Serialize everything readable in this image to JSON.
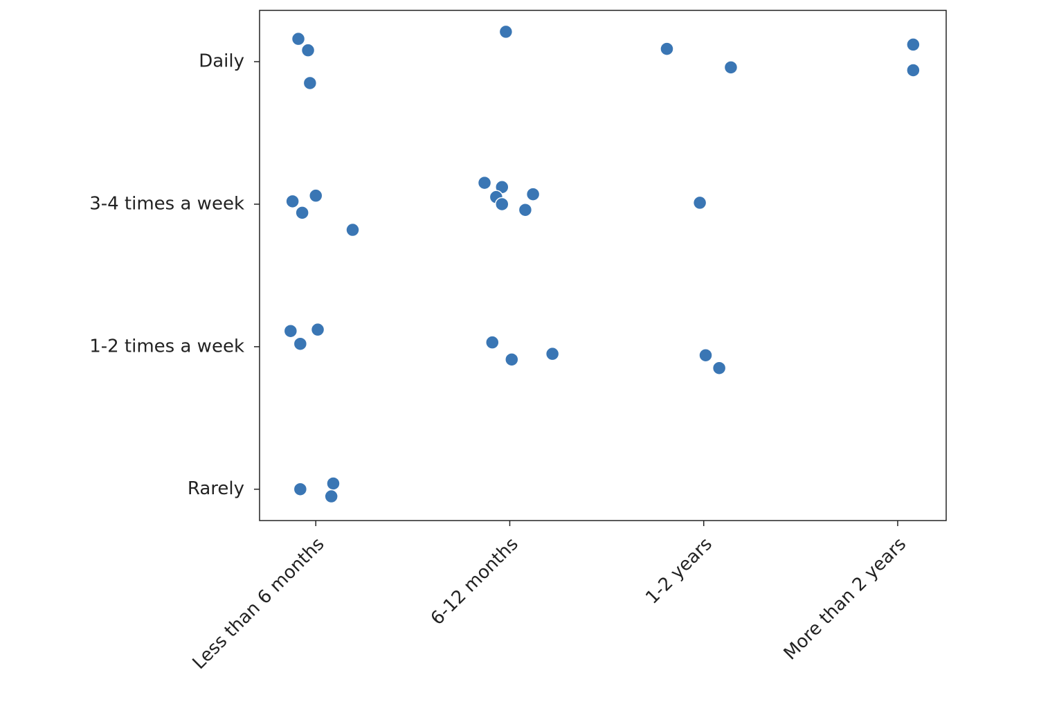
{
  "chart_data": {
    "type": "scatter",
    "x": [
      -0.09,
      -0.04,
      -0.03,
      -0.12,
      0.0,
      -0.07,
      0.19,
      -0.13,
      0.01,
      -0.08,
      -0.08,
      0.09,
      0.08,
      0.98,
      0.87,
      0.96,
      0.93,
      0.96,
      1.12,
      1.08,
      0.91,
      1.01,
      1.22,
      1.81,
      2.14,
      1.98,
      2.01,
      2.08,
      3.08,
      3.08
    ],
    "values": [
      -0.16,
      -0.08,
      0.15,
      0.98,
      0.94,
      1.06,
      1.18,
      1.89,
      1.88,
      1.98,
      3.0,
      2.96,
      3.05,
      -0.21,
      0.85,
      0.88,
      0.95,
      1.0,
      0.93,
      1.04,
      1.97,
      2.09,
      2.05,
      -0.09,
      0.04,
      0.99,
      2.06,
      2.15,
      -0.12,
      0.06
    ],
    "color": "#3a76b4",
    "xlim": [
      -0.29,
      3.25
    ],
    "ylim": [
      3.22,
      -0.36
    ],
    "xticks": [
      {
        "value": 0,
        "label": "Less than 6 months"
      },
      {
        "value": 1,
        "label": "6-12 months"
      },
      {
        "value": 2,
        "label": "1-2 years"
      },
      {
        "value": 3,
        "label": "More than 2 years"
      }
    ],
    "yticks": [
      {
        "value": 0,
        "label": "Daily"
      },
      {
        "value": 1,
        "label": "3-4 times a week"
      },
      {
        "value": 2,
        "label": "1-2 times a week"
      },
      {
        "value": 3,
        "label": "Rarely"
      }
    ]
  }
}
